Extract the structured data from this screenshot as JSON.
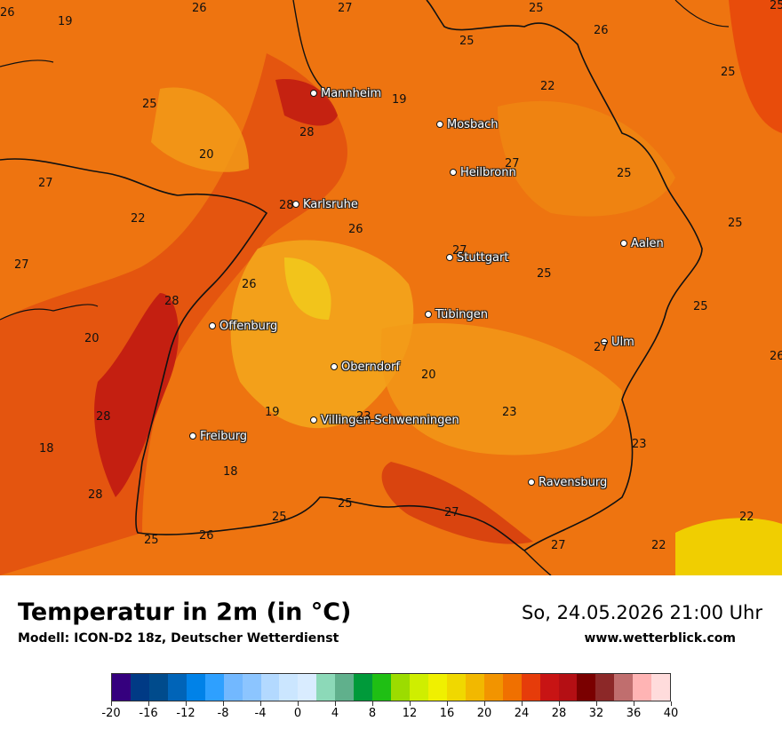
{
  "map": {
    "cities": [
      {
        "name": "Mannheim"
      },
      {
        "name": "Mosbach"
      },
      {
        "name": "Heilbronn"
      },
      {
        "name": "Karlsruhe"
      },
      {
        "name": "Stuttgart"
      },
      {
        "name": "Aalen"
      },
      {
        "name": "Tübingen"
      },
      {
        "name": "Offenburg"
      },
      {
        "name": "Ulm"
      },
      {
        "name": "Oberndorf"
      },
      {
        "name": "Villingen-Schwenningen"
      },
      {
        "name": "Freiburg"
      },
      {
        "name": "Ravensburg"
      }
    ],
    "values": [
      "26",
      "19",
      "26",
      "27",
      "25",
      "26",
      "25",
      "25",
      "22",
      "25",
      "28",
      "25",
      "19",
      "20",
      "27",
      "27",
      "25",
      "27",
      "22",
      "28",
      "26",
      "25",
      "27",
      "25",
      "26",
      "28",
      "25",
      "20",
      "27",
      "26",
      "20",
      "18",
      "28",
      "19",
      "23",
      "23",
      "23",
      "18",
      "28",
      "25",
      "25",
      "27",
      "22",
      "27",
      "26",
      "25",
      "22"
    ]
  },
  "footer": {
    "title": "Temperatur in 2m (in °C)",
    "subtitle": "Modell: ICON-D2 18z, Deutscher Wetterdienst",
    "datetime": "So, 24.05.2026 21:00 Uhr",
    "website": "www.wetterblick.com"
  },
  "legend": {
    "colors": [
      "#35007e",
      "#003a85",
      "#004b8c",
      "#0064b8",
      "#0082e8",
      "#2ea0ff",
      "#72b8ff",
      "#8cc5ff",
      "#b3d9ff",
      "#cbe6ff",
      "#d9ecff",
      "#8cd9b8",
      "#60b08c",
      "#009a3a",
      "#1fbf14",
      "#9cdc00",
      "#cfee00",
      "#f0f000",
      "#f0d800",
      "#f2b800",
      "#f29400",
      "#f07000",
      "#e63c0a",
      "#c81414",
      "#b40f14",
      "#7a0000",
      "#8c2828",
      "#c06e6e",
      "#ffb4b4",
      "#ffdcdc"
    ],
    "ticks": [
      "-20",
      "-16",
      "-12",
      "-8",
      "-4",
      "0",
      "4",
      "8",
      "12",
      "16",
      "20",
      "24",
      "28",
      "32",
      "36",
      "40"
    ]
  }
}
